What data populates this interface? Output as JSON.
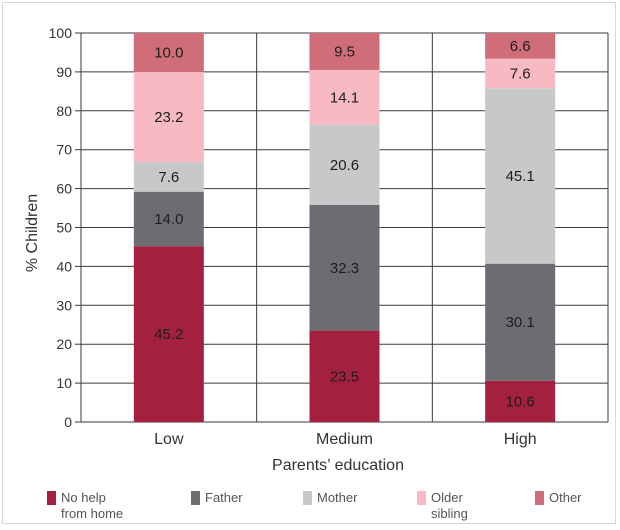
{
  "chart_data": {
    "type": "bar",
    "stacked": true,
    "categories": [
      "Low",
      "Medium",
      "High"
    ],
    "series": [
      {
        "name": "No help\nfrom home",
        "color": "#a3203f",
        "values": [
          45.2,
          23.5,
          10.6
        ]
      },
      {
        "name": "Father",
        "color": "#6c6d70",
        "values": [
          14.0,
          32.3,
          30.1
        ]
      },
      {
        "name": "Mother",
        "color": "#c7c8ca",
        "values": [
          7.6,
          20.6,
          45.1
        ]
      },
      {
        "name": "Older\nsibling",
        "color": "#f7b9c4",
        "values": [
          23.2,
          14.1,
          7.6
        ]
      },
      {
        "name": "Other",
        "color": "#cf6e78",
        "values": [
          10.0,
          9.5,
          6.6
        ]
      }
    ],
    "data_labels": [
      [
        "45.2",
        "23.5",
        "10.6"
      ],
      [
        "14.0",
        "32.3",
        "30.1"
      ],
      [
        "7.6",
        "20.6",
        "45.1"
      ],
      [
        "23.2",
        "14.1",
        "7.6"
      ],
      [
        "10.0",
        "9.5",
        "6.6"
      ]
    ],
    "xlabel": "Parents’ education",
    "ylabel": "% Children",
    "ylim": [
      0,
      100
    ],
    "yticks": [
      0,
      10,
      20,
      30,
      40,
      50,
      60,
      70,
      80,
      90,
      100
    ],
    "grid": true,
    "legend_position": "bottom"
  }
}
